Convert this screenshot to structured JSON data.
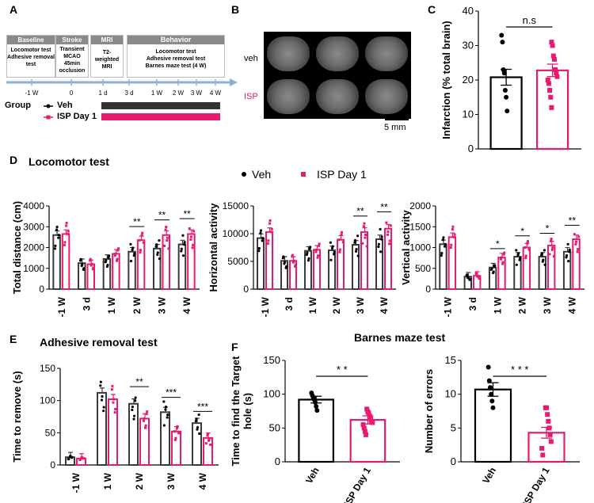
{
  "panel_labels": {
    "a": "A",
    "b": "B",
    "c": "C",
    "d": "D",
    "e": "E",
    "f": "F"
  },
  "colors": {
    "veh": "#000000",
    "isp": "#e8196e",
    "bar_gray": "#3a3a3a"
  },
  "timeline": {
    "baseline": {
      "head": "Baseline",
      "body": "Locomotor test Adhesive removal test"
    },
    "stroke": {
      "head": "Stroke",
      "body": "Transient MCAO 45min occlusion"
    },
    "mri": {
      "head": "MRI",
      "body": "T2-weighted MRI"
    },
    "behavior": {
      "head": "Behavior",
      "body1": "Locomotor test",
      "body2": "Adhesive removal test",
      "body3": "Barnes maze test (4 W)"
    },
    "ticks": [
      "-1 W",
      "0",
      "1 d",
      "3 d",
      "1 W",
      "2 W",
      "3 W",
      "4 W"
    ],
    "group_label": "Group",
    "legend_veh": "Veh",
    "legend_isp": "ISP Day 1"
  },
  "mri_panel": {
    "row_veh": "veh",
    "row_isp": "ISP",
    "scale": "5 mm"
  },
  "section_titles": {
    "locomotor": "Locomotor test",
    "adhesive": "Adhesive removal test",
    "barnes": "Barnes maze test"
  },
  "legend_d": {
    "veh": "Veh",
    "isp": "ISP Day 1"
  },
  "chart_data": [
    {
      "id": "c",
      "type": "bar",
      "title": "",
      "ylabel": "Infarction (% total brain)",
      "ylim": [
        0,
        40
      ],
      "yticks": [
        0,
        10,
        20,
        30,
        40
      ],
      "categories": [
        "Veh",
        "ISP Day 1"
      ],
      "values": [
        20.8,
        22.8
      ],
      "errors": [
        2.3,
        1.8
      ],
      "points": [
        [
          33,
          31,
          23,
          22,
          17,
          15,
          11
        ],
        [
          31,
          30,
          27,
          26,
          23,
          22,
          21,
          20,
          19,
          17,
          15,
          12
        ]
      ],
      "annotations": [
        {
          "text": "n.s",
          "between": [
            0,
            1
          ]
        }
      ]
    },
    {
      "id": "d1",
      "type": "bar",
      "ylabel": "Total distance (cm)",
      "ylim": [
        0,
        4000
      ],
      "yticks": [
        0,
        1000,
        2000,
        3000,
        4000
      ],
      "categories": [
        "-1 W",
        "3 d",
        "1 W",
        "2 W",
        "3 W",
        "4 W"
      ],
      "series": [
        {
          "name": "Veh",
          "values": [
            2600,
            1250,
            1450,
            1800,
            1950,
            2150
          ]
        },
        {
          "name": "ISP Day 1",
          "values": [
            2650,
            1200,
            1700,
            2350,
            2600,
            2650
          ]
        }
      ],
      "sig": [
        {
          "index": 3,
          "text": "**"
        },
        {
          "index": 4,
          "text": "**"
        },
        {
          "index": 5,
          "text": "**"
        }
      ]
    },
    {
      "id": "d2",
      "type": "bar",
      "ylabel": "Horizontal activity",
      "ylim": [
        0,
        15000
      ],
      "yticks": [
        0,
        5000,
        10000,
        15000
      ],
      "categories": [
        "-1 W",
        "3 d",
        "1 W",
        "2 W",
        "3 W",
        "4 W"
      ],
      "series": [
        {
          "name": "Veh",
          "values": [
            9200,
            5100,
            6900,
            7000,
            8000,
            9000
          ]
        },
        {
          "name": "ISP Day 1",
          "values": [
            10300,
            5100,
            7100,
            8900,
            10300,
            10900
          ]
        }
      ],
      "sig": [
        {
          "index": 4,
          "text": "**"
        },
        {
          "index": 5,
          "text": "**"
        }
      ]
    },
    {
      "id": "d3",
      "type": "bar",
      "ylabel": "Vertical activity",
      "ylim": [
        0,
        2000
      ],
      "yticks": [
        0,
        500,
        1000,
        1500,
        2000
      ],
      "categories": [
        "-1 W",
        "3 d",
        "1 W",
        "2 W",
        "3 W",
        "4 W"
      ],
      "series": [
        {
          "name": "Veh",
          "values": [
            1080,
            300,
            520,
            780,
            780,
            900
          ]
        },
        {
          "name": "ISP Day 1",
          "values": [
            1250,
            320,
            760,
            1000,
            1050,
            1200
          ]
        }
      ],
      "sig": [
        {
          "index": 2,
          "text": "*"
        },
        {
          "index": 3,
          "text": "*"
        },
        {
          "index": 4,
          "text": "*"
        },
        {
          "index": 5,
          "text": "**"
        }
      ]
    },
    {
      "id": "e",
      "type": "bar",
      "ylabel": "Time to remove (s)",
      "ylim": [
        0,
        150
      ],
      "yticks": [
        0,
        50,
        100,
        150
      ],
      "categories": [
        "-1 W",
        "1 W",
        "2 W",
        "3 W",
        "4 W"
      ],
      "series": [
        {
          "name": "Veh",
          "values": [
            12,
            112,
            95,
            82,
            65
          ]
        },
        {
          "name": "ISP Day 1",
          "values": [
            10,
            102,
            72,
            52,
            42
          ]
        }
      ],
      "sig": [
        {
          "index": 2,
          "text": "**"
        },
        {
          "index": 3,
          "text": "***"
        },
        {
          "index": 4,
          "text": "***"
        }
      ]
    },
    {
      "id": "f1",
      "type": "bar",
      "ylabel": "Time to find the Target hole (s)",
      "ylim": [
        0,
        150
      ],
      "yticks": [
        0,
        50,
        100,
        150
      ],
      "categories": [
        "Veh",
        "ISP Day 1"
      ],
      "values": [
        92,
        62
      ],
      "errors": [
        5,
        6
      ],
      "points": [
        [
          102,
          98,
          95,
          92,
          88,
          82,
          76
        ],
        [
          78,
          74,
          72,
          68,
          64,
          60,
          58,
          55,
          50,
          45,
          40
        ]
      ],
      "annotations": [
        {
          "text": "* *",
          "between": [
            0,
            1
          ]
        }
      ]
    },
    {
      "id": "f2",
      "type": "bar",
      "ylabel": "Number of errors",
      "ylim": [
        0,
        15
      ],
      "yticks": [
        0,
        5,
        10,
        15
      ],
      "categories": [
        "Veh",
        "ISP Day 1"
      ],
      "values": [
        10.7,
        4.3
      ],
      "errors": [
        1.0,
        0.8
      ],
      "points": [
        [
          14,
          12,
          11,
          10,
          9,
          8
        ],
        [
          8,
          8,
          7,
          6,
          5,
          4,
          3,
          2,
          1
        ]
      ],
      "annotations": [
        {
          "text": "* * *",
          "between": [
            0,
            1
          ]
        }
      ]
    }
  ]
}
